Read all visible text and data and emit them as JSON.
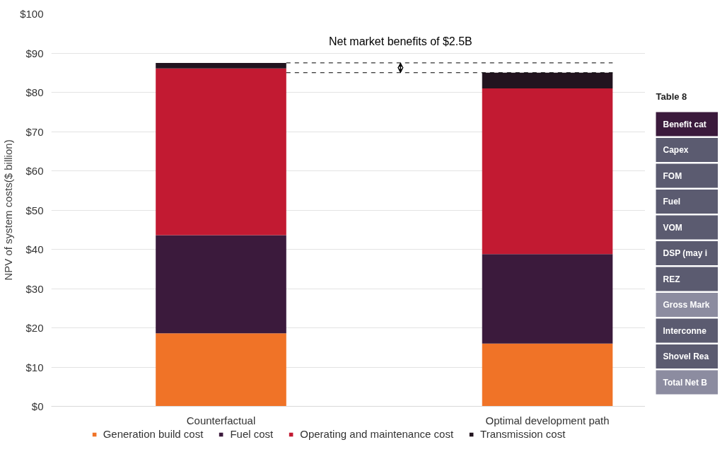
{
  "chart_data": [
    {
      "type": "bar",
      "stacked": true,
      "ylabel": "NPV of system costs($ billion)",
      "categories": [
        "Counterfactual",
        "Optimal development path"
      ],
      "series": [
        {
          "name": "Generation build cost",
          "color": "#f07327",
          "values": [
            18.6,
            16.0
          ]
        },
        {
          "name": "Fuel cost",
          "color": "#3b1a3c",
          "values": [
            25.0,
            22.8
          ]
        },
        {
          "name": "Operating and maintenance cost",
          "color": "#c21a32",
          "values": [
            42.5,
            42.2
          ]
        },
        {
          "name": "Transmission cost",
          "color": "#22141f",
          "values": [
            1.4,
            4.0
          ]
        }
      ],
      "ylim": [
        0,
        100
      ],
      "yticks": [
        {
          "value": 0,
          "label": "$0"
        },
        {
          "value": 10,
          "label": "$10"
        },
        {
          "value": 20,
          "label": "$20"
        },
        {
          "value": 30,
          "label": "$30"
        },
        {
          "value": 40,
          "label": "$40"
        },
        {
          "value": 50,
          "label": "$50"
        },
        {
          "value": 60,
          "label": "$60"
        },
        {
          "value": 70,
          "label": "$70"
        },
        {
          "value": 80,
          "label": "$80"
        },
        {
          "value": 90,
          "label": "$90"
        },
        {
          "value": 100,
          "label": "$100"
        }
      ],
      "grid": "y",
      "legend": "bottom",
      "ref_lines": [
        {
          "axis": "y",
          "value": 87.5,
          "line_style": "dashed",
          "color": "#000000"
        },
        {
          "axis": "y",
          "value": 85.0,
          "line_style": "dashed",
          "color": "#000000"
        }
      ],
      "annotations": [
        "Net market benefits of $2.5B"
      ]
    },
    {
      "type": "other",
      "title": "Table 8",
      "annotations": [
        "Benefit cat",
        "Capex",
        "FOM",
        "Fuel",
        "VOM",
        "DSP (may i",
        "REZ",
        "Gross Mark",
        "Interconne",
        "Shovel Rea",
        "Total Net B"
      ]
    }
  ]
}
